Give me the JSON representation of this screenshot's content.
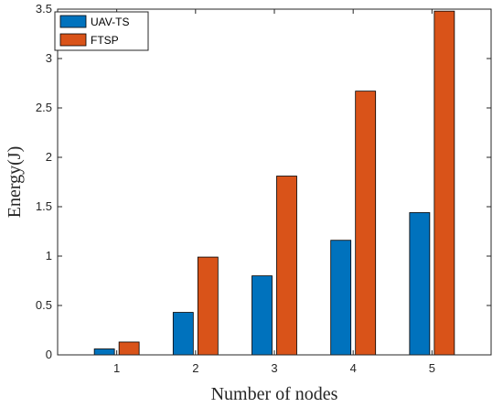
{
  "chart_data": {
    "type": "bar",
    "categories": [
      "1",
      "2",
      "3",
      "4",
      "5"
    ],
    "series": [
      {
        "name": "UAV-TS",
        "color": "#0072BD",
        "values": [
          0.06,
          0.43,
          0.8,
          1.16,
          1.44
        ]
      },
      {
        "name": "FTSP",
        "color": "#D95319",
        "values": [
          0.13,
          0.99,
          1.81,
          2.67,
          3.48
        ]
      }
    ],
    "xlabel": "Number of nodes",
    "ylabel": "Energy(J)",
    "ylim": [
      0,
      3.5
    ],
    "yticks": [
      "0",
      "0.5",
      "1",
      "1.5",
      "2",
      "2.5",
      "3",
      "3.5"
    ],
    "grid": false,
    "legend_position": "top-left"
  }
}
